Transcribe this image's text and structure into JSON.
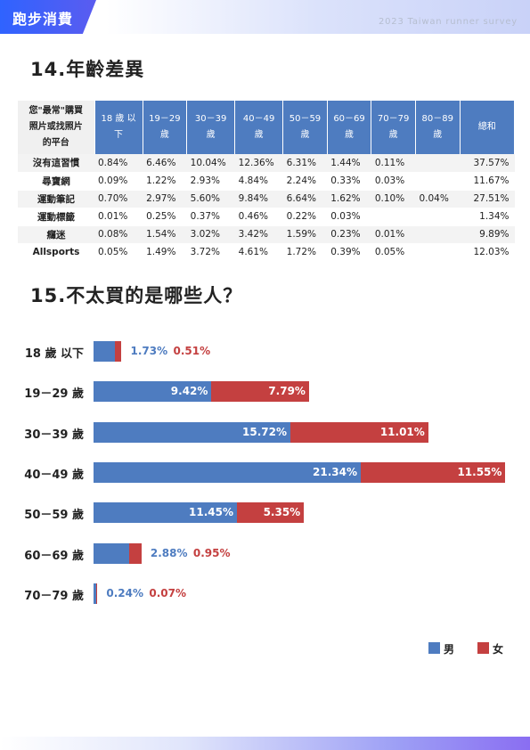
{
  "header": {
    "title": "跑步消費",
    "subtitle": "2023 Taiwan runner survey"
  },
  "section14": {
    "title": "14.年齡差異"
  },
  "table": {
    "corner_lines": [
      "您\"最常\"購買",
      "照片或找照片",
      "的平台"
    ],
    "columns": [
      [
        "18 歲 以",
        "下"
      ],
      [
        "19－29",
        "歲"
      ],
      [
        "30－39",
        "歲"
      ],
      [
        "40－49",
        "歲"
      ],
      [
        "50－59",
        "歲"
      ],
      [
        "60－69",
        "歲"
      ],
      [
        "70－79",
        "歲"
      ],
      [
        "80－89",
        "歲"
      ],
      [
        "總和"
      ]
    ],
    "rows": [
      {
        "name": "沒有這習慣",
        "cells": [
          "0.84%",
          "6.46%",
          "10.04%",
          "12.36%",
          "6.31%",
          "1.44%",
          "0.11%",
          "",
          "37.57%"
        ]
      },
      {
        "name": "尋寶網",
        "cells": [
          "0.09%",
          "1.22%",
          "2.93%",
          "4.84%",
          "2.24%",
          "0.33%",
          "0.03%",
          "",
          "11.67%"
        ]
      },
      {
        "name": "運動筆記",
        "cells": [
          "0.70%",
          "2.97%",
          "5.60%",
          "9.84%",
          "6.64%",
          "1.62%",
          "0.10%",
          "0.04%",
          "27.51%"
        ]
      },
      {
        "name": "運動標籤",
        "cells": [
          "0.01%",
          "0.25%",
          "0.37%",
          "0.46%",
          "0.22%",
          "0.03%",
          "",
          "",
          "1.34%"
        ]
      },
      {
        "name": "癮迷",
        "cells": [
          "0.08%",
          "1.54%",
          "3.02%",
          "3.42%",
          "1.59%",
          "0.23%",
          "0.01%",
          "",
          "9.89%"
        ]
      },
      {
        "name": "Allsports",
        "cells": [
          "0.05%",
          "1.49%",
          "3.72%",
          "4.61%",
          "1.72%",
          "0.39%",
          "0.05%",
          "",
          "12.03%"
        ]
      }
    ]
  },
  "section15": {
    "title": "15.不太買的是哪些人？"
  },
  "chart_data": {
    "type": "bar",
    "orientation": "horizontal",
    "stacked": true,
    "categories": [
      "18 歲 以下",
      "19－29 歲",
      "30－39 歲",
      "40－49 歲",
      "50－59 歲",
      "60－69 歲",
      "70－79 歲"
    ],
    "series": [
      {
        "name": "男",
        "color": "#4e7cc0",
        "values": [
          1.73,
          9.42,
          15.72,
          21.34,
          11.45,
          2.88,
          0.24
        ],
        "labels": [
          "1.73%",
          "9.42%",
          "15.72%",
          "21.34%",
          "11.45%",
          "2.88%",
          "0.24%"
        ]
      },
      {
        "name": "女",
        "color": "#c44040",
        "values": [
          0.51,
          7.79,
          11.01,
          11.55,
          5.35,
          0.95,
          0.07
        ],
        "labels": [
          "0.51%",
          "7.79%",
          "11.01%",
          "11.55%",
          "5.35%",
          "0.95%",
          "0.07%"
        ]
      }
    ],
    "legend_position": "bottom-right",
    "grid": false
  },
  "legend": {
    "male": "男",
    "female": "女"
  }
}
